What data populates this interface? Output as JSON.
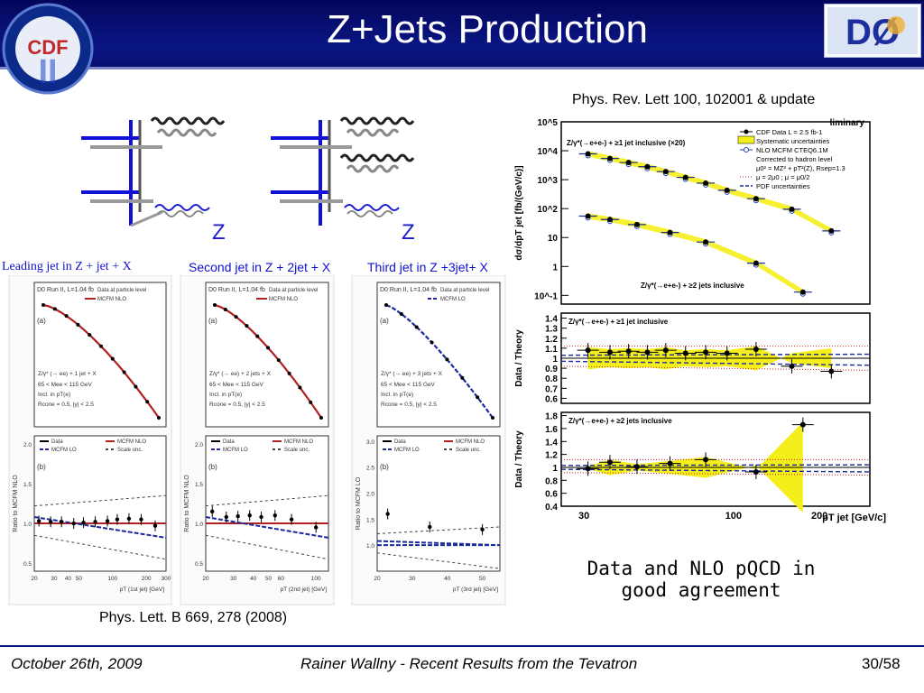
{
  "slide": {
    "title": "Z+Jets Production",
    "footer_date": "October 26th, 2009",
    "footer_center": "Rainer Wallny - Recent Results from the Tevatron",
    "page_number": "30/58",
    "conclusion": [
      "Data and NLO pQCD in",
      "good agreement"
    ]
  },
  "logos": {
    "left_text": "CDF",
    "left_numeral": "II",
    "right_text": "DØ"
  },
  "diagrams": {
    "boson_label": "Z"
  },
  "captions": {
    "cdf_reference": "Phys. Rev. Lett 100, 102001 & update",
    "d0_reference": "Phys. Lett. B 669, 278 (2008)",
    "leading_jet": "Leading jet in Z + jet + X",
    "second_jet": "Second jet in Z + 2jet + X",
    "third_jet": "Third jet in Z +3jet+ X"
  },
  "d0_plots": {
    "header": "D0 Run II, L=1.04 fb",
    "top_legend": [
      "Data at particle level",
      "MCFM  NLO",
      "MCFM  LO"
    ],
    "panel_a": "(a)",
    "panel_b": "(b)",
    "bottom_legend": [
      "Data",
      "MCFM NLO",
      "MCFM LO",
      "Scale unc."
    ],
    "processes": [
      "Z/γ* (→ ee) + 1 jet + X",
      "Z/γ* (→ ee) + 2 jets + X",
      "Z/γ* (→ ee) + 3 jets + X"
    ],
    "cuts": [
      "65 < Mee < 115 GeV",
      "Incl. in pT(e)",
      "Rcone = 0.5, |y| < 2.5"
    ],
    "ylabels": [
      "Ratio to MCFM NLO",
      "Ratio to MCFM NLO",
      "Ratio to MCFM LO"
    ],
    "xlabels": [
      "pT (1st jet) [GeV]",
      "pT (2nd jet) [GeV]",
      "pT (3rd jet) [GeV]"
    ],
    "xticks_1": [
      "20",
      "30",
      "40",
      "50",
      "100",
      "200",
      "300"
    ],
    "xticks_2": [
      "20",
      "30",
      "40",
      "50",
      "60",
      "100"
    ],
    "xticks_3": [
      "20",
      "30",
      "40",
      "50"
    ],
    "ratio_yticks_12": [
      "0.5",
      "1.0",
      "1.5",
      "2.0"
    ],
    "ratio_yticks_3": [
      "1.0",
      "1.5",
      "2.0",
      "2.5",
      "3.0"
    ]
  },
  "cdf_plot": {
    "preliminary": "liminary",
    "ylabel_top": "dσ/dpT jet [fb/(GeV/c)]",
    "ylabel_ratio": "Data / Theory",
    "xlabel": "pT jet  [GeV/c]",
    "xticks": [
      "30",
      "100",
      "200"
    ],
    "yticks_top": [
      "10^5",
      "10^4",
      "10^3",
      "10^2",
      "10",
      "1",
      "10^-1"
    ],
    "yticks_mid": [
      "1.4",
      "1.3",
      "1.2",
      "1.1",
      "1",
      "0.9",
      "0.8",
      "0.7",
      "0.6"
    ],
    "yticks_bot": [
      "1.8",
      "1.6",
      "1.4",
      "1.2",
      "1",
      "0.8",
      "0.6",
      "0.4"
    ],
    "label_1jet": "Z/γ*(→e+e-) + ≥1 jet inclusive (×20)",
    "label_2jet": "Z/γ*(→e+e-) + ≥2 jets inclusive",
    "label_mid": "Z/γ*(→e+e-) + ≥1 jet inclusive",
    "label_bot": "Z/γ*(→e+e-) + ≥2 jets inclusive",
    "legend": [
      "CDF Data  L = 2.5 fb-1",
      "Systematic uncertainties",
      "NLO MCFM CTEQ6.1M",
      "Corrected to hadron level",
      "μ0² = MZ² + pT²(Z), Rsep=1.3",
      "μ = 2μ0 ; μ = μ0/2",
      "PDF uncertainties"
    ]
  },
  "chart_data": [
    {
      "type": "scatter",
      "title": "Z/γ*(→e+e-) + ≥1 jet inclusive (×20)",
      "xlabel": "pT jet [GeV/c]",
      "ylabel": "dσ/dpT jet [fb/(GeV/c)]",
      "log_y": true,
      "log_x": true,
      "xlim": [
        25,
        300
      ],
      "ylim": [
        0.05,
        100000
      ],
      "series": [
        {
          "name": "Z/γ*(→e+e-) + ≥1 jet inclusive (×20)",
          "x": [
            31,
            37,
            43,
            50,
            58,
            68,
            80,
            95,
            120,
            160,
            220
          ],
          "y": [
            7800,
            5400,
            3900,
            2800,
            1900,
            1200,
            760,
            430,
            220,
            95,
            17
          ]
        },
        {
          "name": "Z/γ*(→e+e-) + ≥2 jets inclusive",
          "x": [
            31,
            37,
            46,
            60,
            80,
            120,
            175
          ],
          "y": [
            55,
            42,
            28,
            15,
            7,
            1.3,
            0.13
          ]
        }
      ]
    },
    {
      "type": "scatter",
      "title": "Z/γ*(→e+e-) + ≥1 jet inclusive",
      "xlabel": "pT jet [GeV/c]",
      "ylabel": "Data / Theory",
      "xlim": [
        25,
        300
      ],
      "ylim": [
        0.55,
        1.45
      ],
      "series": [
        {
          "name": "CDF Data  L = 2.5 fb-1",
          "x": [
            31,
            37,
            43,
            50,
            58,
            68,
            80,
            95,
            120,
            160,
            220
          ],
          "y": [
            1.08,
            1.06,
            1.07,
            1.06,
            1.08,
            1.05,
            1.06,
            1.05,
            1.09,
            0.92,
            0.87
          ]
        }
      ]
    },
    {
      "type": "scatter",
      "title": "Z/γ*(→e+e-) + ≥2 jets inclusive",
      "xlabel": "pT jet [GeV/c]",
      "ylabel": "Data / Theory",
      "xlim": [
        25,
        300
      ],
      "ylim": [
        0.4,
        1.85
      ],
      "series": [
        {
          "name": "CDF Data  L = 2.5 fb-1",
          "x": [
            31,
            37,
            46,
            60,
            80,
            120,
            175
          ],
          "y": [
            0.98,
            1.08,
            1.01,
            1.06,
            1.12,
            0.93,
            1.66
          ]
        }
      ]
    },
    {
      "type": "line",
      "title": "Z/γ* (→ ee) + 1 jet + X",
      "xlabel": "pT (1st jet) [GeV]",
      "ylabel": "Ratio to MCFM NLO",
      "xlim": [
        20,
        300
      ],
      "ylim": [
        0.4,
        2.1
      ],
      "series": [
        {
          "name": "Data",
          "x": [
            22,
            28,
            35,
            45,
            55,
            70,
            90,
            110,
            140,
            180,
            240
          ],
          "y": [
            1.03,
            1.02,
            1.02,
            1.0,
            1.01,
            1.02,
            1.03,
            1.05,
            1.06,
            1.05,
            0.97
          ]
        }
      ]
    },
    {
      "type": "line",
      "title": "Z/γ* (→ ee) + 2 jets + X",
      "xlabel": "pT (2nd jet) [GeV]",
      "ylabel": "Ratio to MCFM NLO",
      "xlim": [
        20,
        120
      ],
      "ylim": [
        0.4,
        2.1
      ],
      "series": [
        {
          "name": "Data",
          "x": [
            22,
            27,
            32,
            38,
            45,
            55,
            70,
            100
          ],
          "y": [
            1.15,
            1.08,
            1.09,
            1.1,
            1.08,
            1.1,
            1.05,
            0.95
          ]
        }
      ]
    },
    {
      "type": "line",
      "title": "Z/γ* (→ ee) + 3 jets + X",
      "xlabel": "pT (3rd jet) [GeV]",
      "ylabel": "Ratio to MCFM LO",
      "xlim": [
        20,
        55
      ],
      "ylim": [
        0.5,
        3.1
      ],
      "series": [
        {
          "name": "Data",
          "x": [
            23,
            35,
            50
          ],
          "y": [
            1.6,
            1.35,
            1.3
          ]
        }
      ]
    }
  ]
}
